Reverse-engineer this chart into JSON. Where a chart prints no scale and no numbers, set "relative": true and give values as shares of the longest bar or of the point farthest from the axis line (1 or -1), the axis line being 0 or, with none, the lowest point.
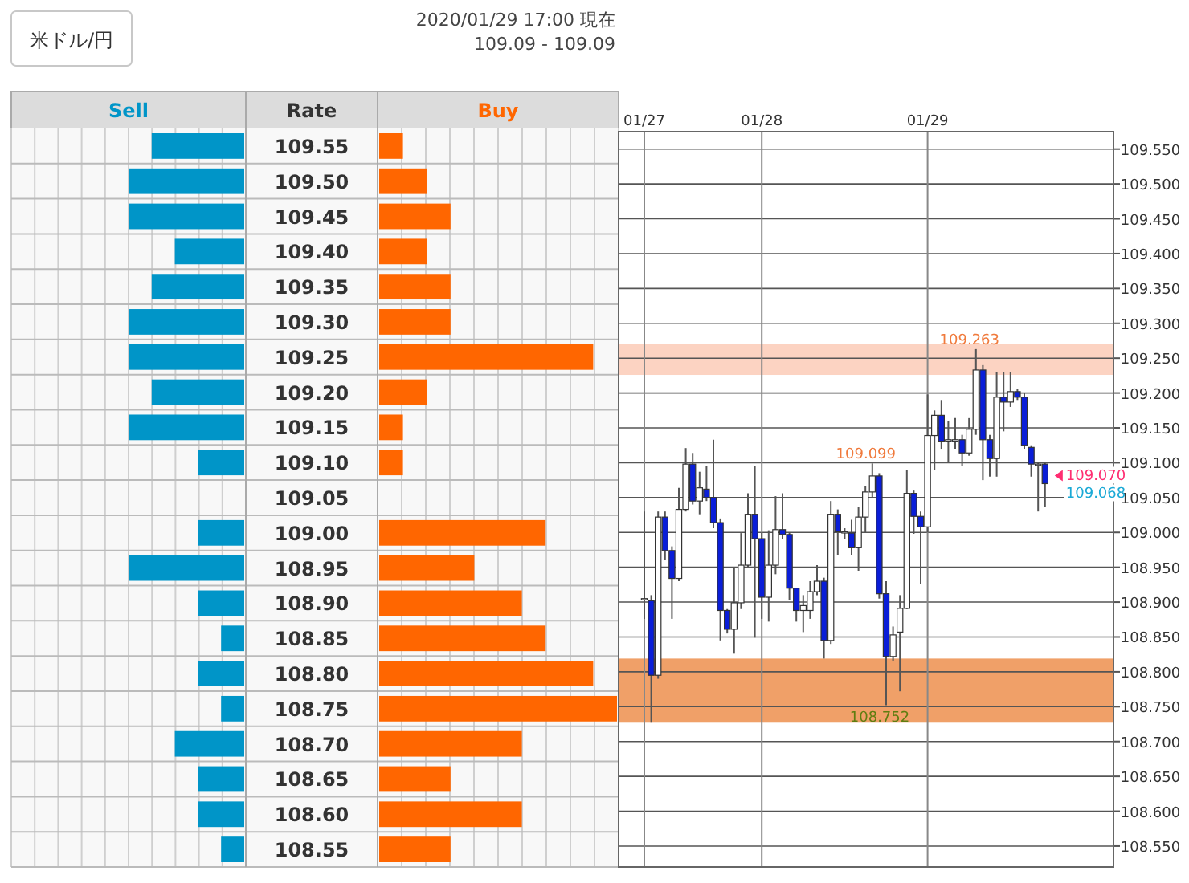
{
  "chart_data": [
    {
      "type": "bar",
      "orientation": "horizontal",
      "relative": true,
      "title": "米ドル/円",
      "ylabel": "Rate",
      "categories": [
        "109.55",
        "109.50",
        "109.45",
        "109.40",
        "109.35",
        "109.30",
        "109.25",
        "109.20",
        "109.15",
        "109.10",
        "109.05",
        "109.00",
        "108.95",
        "108.90",
        "108.85",
        "108.80",
        "108.75",
        "108.70",
        "108.65",
        "108.60",
        "108.55"
      ],
      "series": [
        {
          "name": "Sell",
          "color": "#0095c8",
          "values": [
            0.8,
            1,
            1,
            0.6,
            0.8,
            1,
            1,
            0.8,
            1,
            0.4,
            0,
            0.4,
            1,
            0.4,
            0.2,
            0.4,
            0.2,
            0.6,
            0.4,
            0.4,
            0.2
          ]
        }
      ]
    },
    {
      "type": "bar",
      "orientation": "horizontal",
      "relative": true,
      "tick_labels": false,
      "subtitle": "2020/01/29 17:00 現在",
      "annotations": [
        "109.09 - 109.09"
      ],
      "categories": [
        "109.55",
        "109.50",
        "109.45",
        "109.40",
        "109.35",
        "109.30",
        "109.25",
        "109.20",
        "109.15",
        "109.10",
        "109.05",
        "109.00",
        "108.95",
        "108.90",
        "108.85",
        "108.80",
        "108.75",
        "108.70",
        "108.65",
        "108.60",
        "108.55"
      ],
      "series": [
        {
          "name": "Buy",
          "color": "#ff6600",
          "values": [
            0.1,
            0.2,
            0.3,
            0.2,
            0.3,
            0.3,
            0.9,
            0.2,
            0.1,
            0.1,
            0,
            0.7,
            0.4,
            0.6,
            0.7,
            0.9,
            1,
            0.6,
            0.3,
            0.6,
            0.3
          ]
        }
      ]
    },
    {
      "type": "candlestick",
      "grid": true,
      "ylim": [
        108.52,
        109.575
      ],
      "yticks": [
        {
          "value": 108.55,
          "label": "108.550"
        },
        {
          "value": 108.6,
          "label": "108.600"
        },
        {
          "value": 108.65,
          "label": "108.650"
        },
        {
          "value": 108.7,
          "label": "108.700"
        },
        {
          "value": 108.75,
          "label": "108.750"
        },
        {
          "value": 108.8,
          "label": "108.800"
        },
        {
          "value": 108.85,
          "label": "108.850"
        },
        {
          "value": 108.9,
          "label": "108.900"
        },
        {
          "value": 108.95,
          "label": "108.950"
        },
        {
          "value": 109.0,
          "label": "109.000"
        },
        {
          "value": 109.05,
          "label": "109.050"
        },
        {
          "value": 109.1,
          "label": "109.100"
        },
        {
          "value": 109.15,
          "label": "109.150"
        },
        {
          "value": 109.2,
          "label": "109.200"
        },
        {
          "value": 109.25,
          "label": "109.250"
        },
        {
          "value": 109.3,
          "label": "109.300"
        },
        {
          "value": 109.35,
          "label": "109.350"
        },
        {
          "value": 109.4,
          "label": "109.400"
        },
        {
          "value": 109.45,
          "label": "109.450"
        },
        {
          "value": 109.5,
          "label": "109.500"
        },
        {
          "value": 109.55,
          "label": "109.550"
        }
      ],
      "categories": [
        "01/27",
        null,
        null,
        null,
        null,
        null,
        null,
        null,
        null,
        null,
        null,
        null,
        null,
        null,
        null,
        null,
        null,
        "01/28",
        null,
        null,
        null,
        null,
        null,
        null,
        null,
        null,
        null,
        null,
        null,
        null,
        null,
        null,
        null,
        null,
        null,
        null,
        null,
        null,
        null,
        null,
        null,
        "01/29",
        null,
        null,
        null,
        null,
        null,
        null,
        null,
        null,
        null,
        null,
        null,
        null,
        null,
        null,
        null,
        null,
        null
      ],
      "ohlc": [
        [
          108.905,
          109.03,
          108.876,
          108.905
        ],
        [
          108.902,
          108.91,
          108.727,
          108.795
        ],
        [
          108.795,
          109.03,
          108.79,
          109.022
        ],
        [
          109.022,
          109.03,
          108.96,
          108.974
        ],
        [
          108.974,
          108.98,
          108.876,
          108.934
        ],
        [
          108.934,
          109.064,
          108.93,
          109.033
        ],
        [
          109.033,
          109.121,
          109.03,
          109.098
        ],
        [
          109.098,
          109.114,
          109.04,
          109.045
        ],
        [
          109.045,
          109.087,
          109.026,
          109.064
        ],
        [
          109.062,
          109.095,
          109.045,
          109.05
        ],
        [
          109.05,
          109.133,
          109.006,
          109.014
        ],
        [
          109.014,
          109.02,
          108.845,
          108.888
        ],
        [
          108.888,
          108.89,
          108.855,
          108.861
        ],
        [
          108.861,
          108.95,
          108.826,
          108.899
        ],
        [
          108.899,
          108.999,
          108.89,
          108.953
        ],
        [
          108.953,
          109.056,
          108.95,
          109.026
        ],
        [
          109.026,
          109.095,
          108.849,
          108.991
        ],
        [
          108.991,
          109.0,
          108.876,
          108.907
        ],
        [
          108.907,
          109.003,
          108.872,
          108.953
        ],
        [
          108.953,
          109.052,
          108.94,
          109.004
        ],
        [
          109.004,
          109.056,
          108.99,
          108.997
        ],
        [
          108.997,
          109.0,
          108.903,
          108.92
        ],
        [
          108.92,
          108.92,
          108.872,
          108.888
        ],
        [
          108.888,
          108.91,
          108.857,
          108.895
        ],
        [
          108.888,
          108.93,
          108.876,
          108.915
        ],
        [
          108.915,
          108.953,
          108.91,
          108.93
        ],
        [
          108.93,
          108.935,
          108.819,
          108.845
        ],
        [
          108.845,
          109.045,
          108.84,
          109.026
        ],
        [
          109.026,
          109.033,
          108.968,
          109.001
        ],
        [
          109.001,
          109.006,
          108.99,
          109.001
        ],
        [
          108.999,
          109.018,
          108.968,
          108.978
        ],
        [
          108.978,
          109.037,
          108.945,
          109.022
        ],
        [
          109.022,
          109.066,
          109.0,
          109.058
        ],
        [
          109.058,
          109.099,
          109.05,
          109.081
        ],
        [
          109.081,
          109.085,
          108.905,
          108.912
        ],
        [
          108.912,
          108.93,
          108.752,
          108.822
        ],
        [
          108.822,
          108.865,
          108.815,
          108.853
        ],
        [
          108.857,
          108.91,
          108.772,
          108.891
        ],
        [
          108.891,
          109.09,
          108.89,
          109.056
        ],
        [
          109.056,
          109.06,
          108.998,
          109.023
        ],
        [
          109.023,
          109.03,
          108.926,
          109.008
        ],
        [
          109.008,
          109.198,
          109.0,
          109.139
        ],
        [
          109.139,
          109.175,
          109.09,
          109.168
        ],
        [
          109.168,
          109.19,
          109.12,
          109.13
        ],
        [
          109.13,
          109.16,
          109.1,
          109.133
        ],
        [
          109.13,
          109.164,
          109.12,
          109.133
        ],
        [
          109.133,
          109.14,
          109.095,
          109.114
        ],
        [
          109.114,
          109.164,
          109.11,
          109.148
        ],
        [
          109.148,
          109.263,
          109.14,
          109.233
        ],
        [
          109.233,
          109.24,
          109.075,
          109.133
        ],
        [
          109.133,
          109.14,
          109.08,
          109.106
        ],
        [
          109.106,
          109.23,
          109.08,
          109.194
        ],
        [
          109.194,
          109.23,
          109.145,
          109.187
        ],
        [
          109.187,
          109.23,
          109.18,
          109.202
        ],
        [
          109.202,
          109.206,
          109.19,
          109.194
        ],
        [
          109.194,
          109.2,
          109.12,
          109.125
        ],
        [
          109.122,
          109.125,
          109.08,
          109.098
        ],
        [
          109.098,
          109.1,
          109.03,
          109.098
        ],
        [
          109.098,
          109.1,
          109.037,
          109.07
        ]
      ],
      "bands": [
        {
          "axis": "y",
          "from": 109.226,
          "to": 109.27,
          "color": "#fcd3c2"
        },
        {
          "axis": "y",
          "from": 108.727,
          "to": 108.819,
          "color": "#f0a068"
        }
      ],
      "annotations": [
        {
          "text": "109.263",
          "y": 109.263
        },
        {
          "text": "109.099",
          "y": 109.099
        },
        {
          "text": "108.752",
          "y": 108.752
        },
        "109.070",
        "109.068"
      ]
    }
  ]
}
